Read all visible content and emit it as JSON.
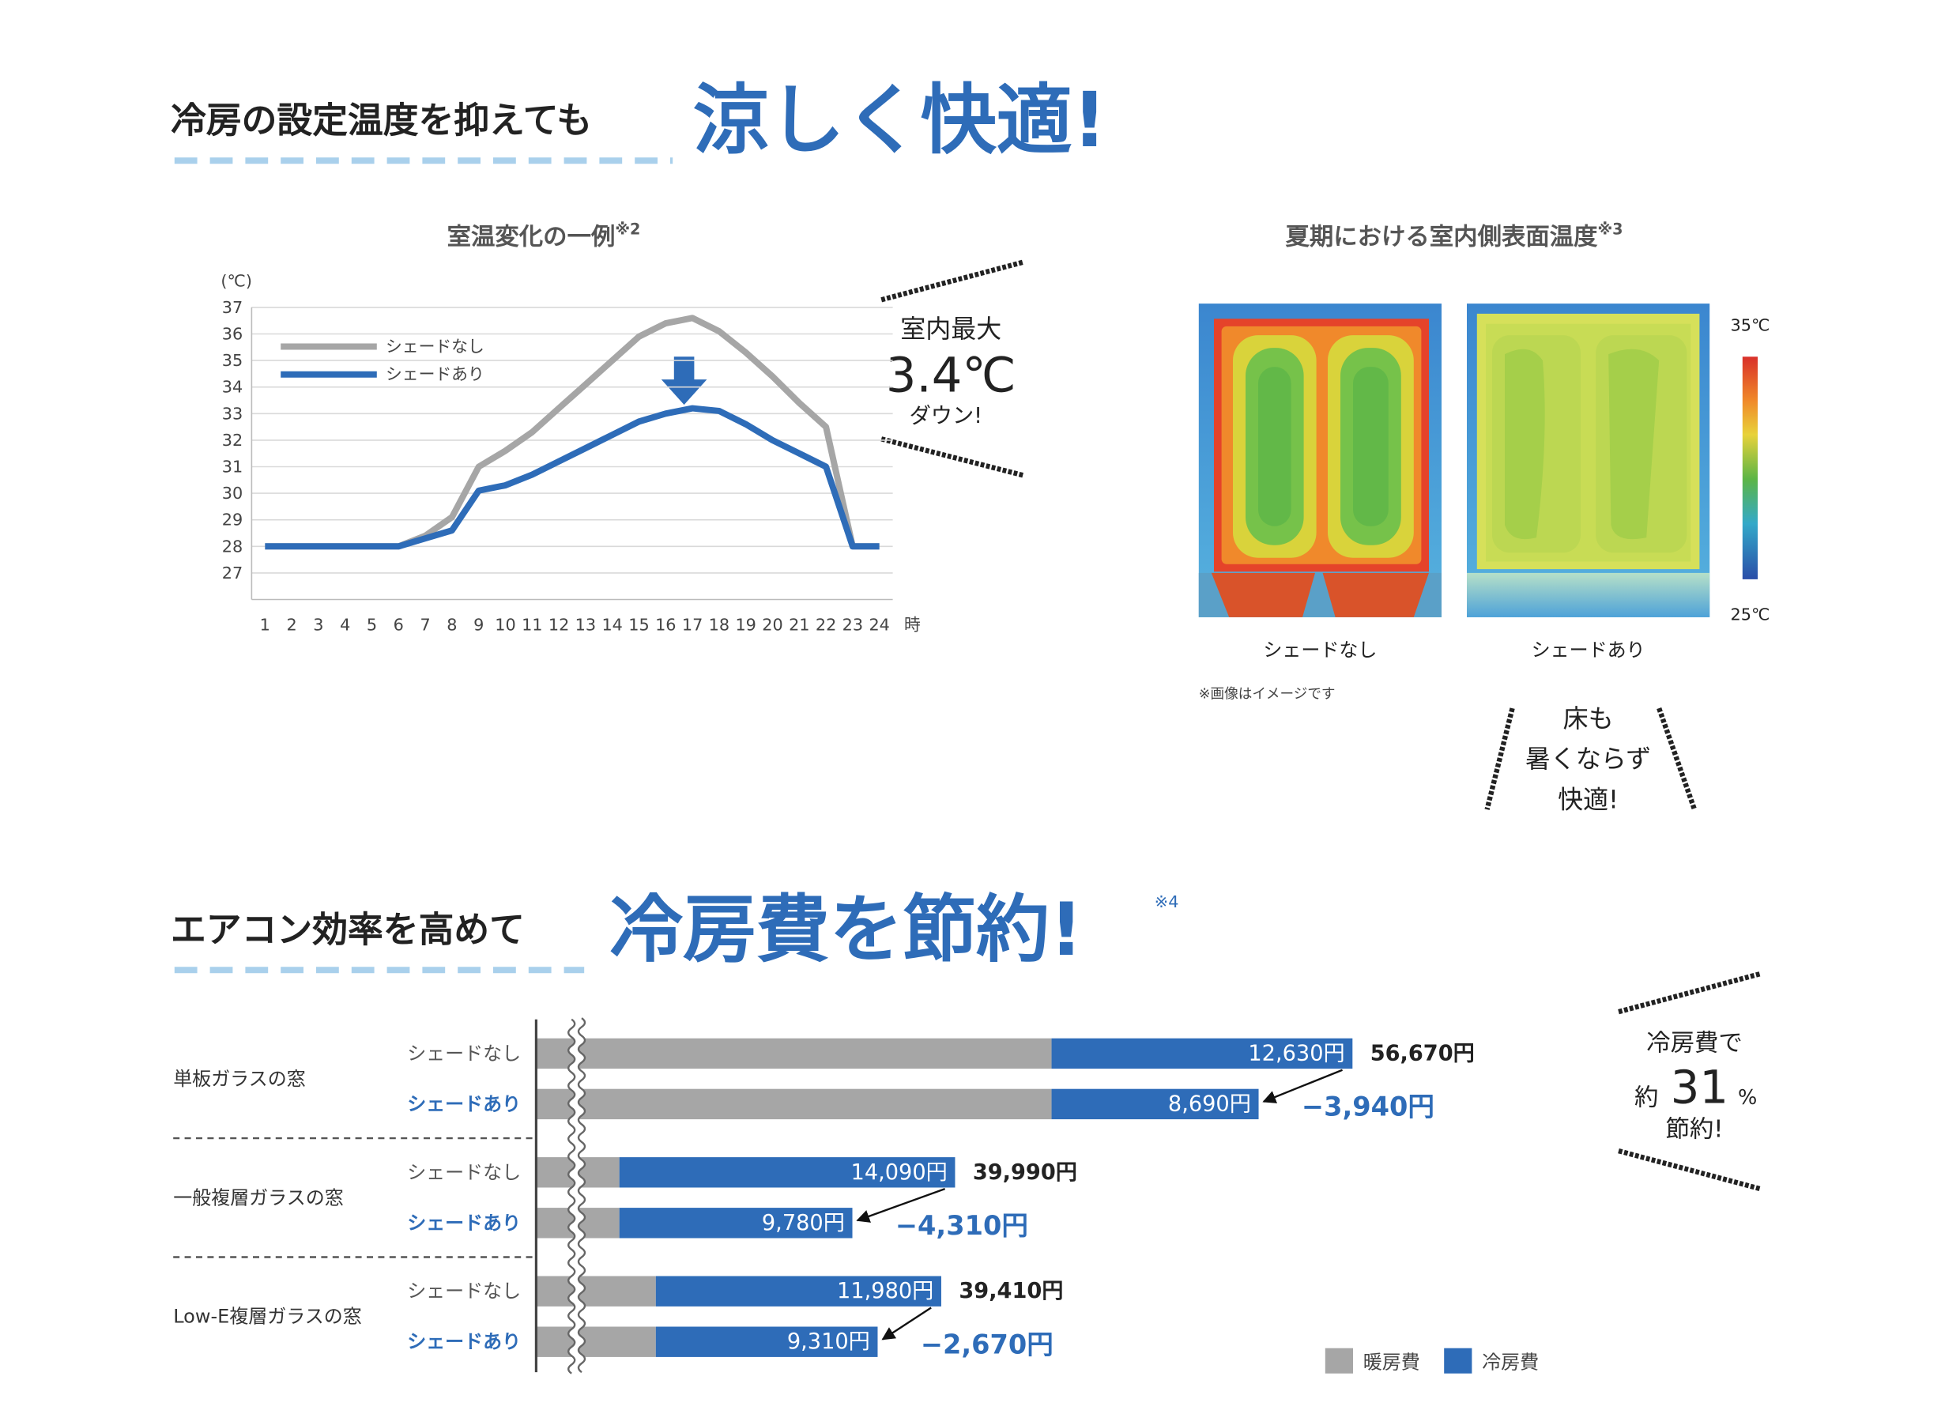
{
  "heading1": {
    "lead": "冷房の設定温度を抑えても",
    "emphasis": "涼しく快適!"
  },
  "chart_data": [
    {
      "type": "line",
      "title": "室温変化の一例",
      "title_note": "※2",
      "y_unit": "(℃)",
      "x_unit": "時",
      "x": [
        1,
        2,
        3,
        4,
        5,
        6,
        7,
        8,
        9,
        10,
        11,
        12,
        13,
        14,
        15,
        16,
        17,
        18,
        19,
        20,
        21,
        22,
        23,
        24
      ],
      "xlim": [
        0.5,
        24.5
      ],
      "xticks": [
        1,
        2,
        3,
        4,
        5,
        6,
        7,
        8,
        9,
        10,
        11,
        12,
        13,
        14,
        15,
        16,
        17,
        18,
        19,
        20,
        21,
        22,
        23,
        24
      ],
      "ylim": [
        26,
        37
      ],
      "yticks": [
        27,
        28,
        29,
        30,
        31,
        32,
        33,
        34,
        35,
        36,
        37
      ],
      "grid": true,
      "series": [
        {
          "name": "シェードなし",
          "color": "#a6a6a6",
          "values": [
            28,
            28,
            28,
            28,
            28,
            28,
            28.4,
            29.1,
            31.0,
            31.6,
            32.3,
            33.2,
            34.1,
            35.0,
            35.9,
            36.4,
            36.6,
            36.1,
            35.3,
            34.4,
            33.4,
            32.5,
            28,
            28
          ]
        },
        {
          "name": "シェードあり",
          "color": "#2e6cb8",
          "values": [
            28,
            28,
            28,
            28,
            28,
            28,
            28.3,
            28.6,
            30.1,
            30.3,
            30.7,
            31.2,
            31.7,
            32.2,
            32.7,
            33.0,
            33.2,
            33.1,
            32.6,
            32.0,
            31.5,
            31.0,
            28,
            28
          ]
        }
      ],
      "callout": {
        "top": "室内最大",
        "value": "3.4℃",
        "bottom": "ダウン!"
      }
    },
    {
      "type": "bar",
      "orientation": "horizontal",
      "stacked": true,
      "broken_axis": true,
      "xlim": [
        24000,
        62000
      ],
      "series": [
        {
          "name": "暖房費",
          "color": "#a6a6a6"
        },
        {
          "name": "冷房費",
          "color": "#2e6cb8"
        }
      ],
      "groups": [
        {
          "label": "単板ガラスの窓",
          "rows": [
            "シェードなし",
            "シェードあり"
          ],
          "heating": [
            44040,
            44040
          ],
          "cooling": [
            12630,
            8690
          ],
          "cooling_labels": [
            "12,630円",
            "8,690円"
          ],
          "total": 56670,
          "total_label": "56,670円",
          "difference": -3940,
          "difference_label": "−3,940円"
        },
        {
          "label": "一般複層ガラスの窓",
          "rows": [
            "シェードなし",
            "シェードあり"
          ],
          "heating": [
            25900,
            25900
          ],
          "cooling": [
            14090,
            9780
          ],
          "cooling_labels": [
            "14,090円",
            "9,780円"
          ],
          "total": 39990,
          "total_label": "39,990円",
          "difference": -4310,
          "difference_label": "−4,310円"
        },
        {
          "label": "Low-E複層ガラスの窓",
          "rows": [
            "シェードなし",
            "シェードあり"
          ],
          "heating": [
            27430,
            27430
          ],
          "cooling": [
            11980,
            9310
          ],
          "cooling_labels": [
            "11,980円",
            "9,310円"
          ],
          "total": 39410,
          "total_label": "39,410円",
          "difference": -2670,
          "difference_label": "−2,670円"
        }
      ],
      "callout": {
        "top": "冷房費で",
        "prefix": "約",
        "number": "31",
        "unit": "%",
        "bottom": "節約!"
      }
    }
  ],
  "thermal": {
    "title": "夏期における室内側表面温度",
    "title_note": "※3",
    "images": [
      {
        "label": "シェードなし"
      },
      {
        "label": "シェードあり"
      }
    ],
    "scale_max": "35℃",
    "scale_min": "25℃",
    "note": "※画像はイメージです",
    "callout": [
      "床も",
      "暑くならず",
      "快適!"
    ]
  },
  "heading2": {
    "lead": "エアコン効率を高めて",
    "emphasis": "冷房費を節約!",
    "note_mark": "※4"
  }
}
